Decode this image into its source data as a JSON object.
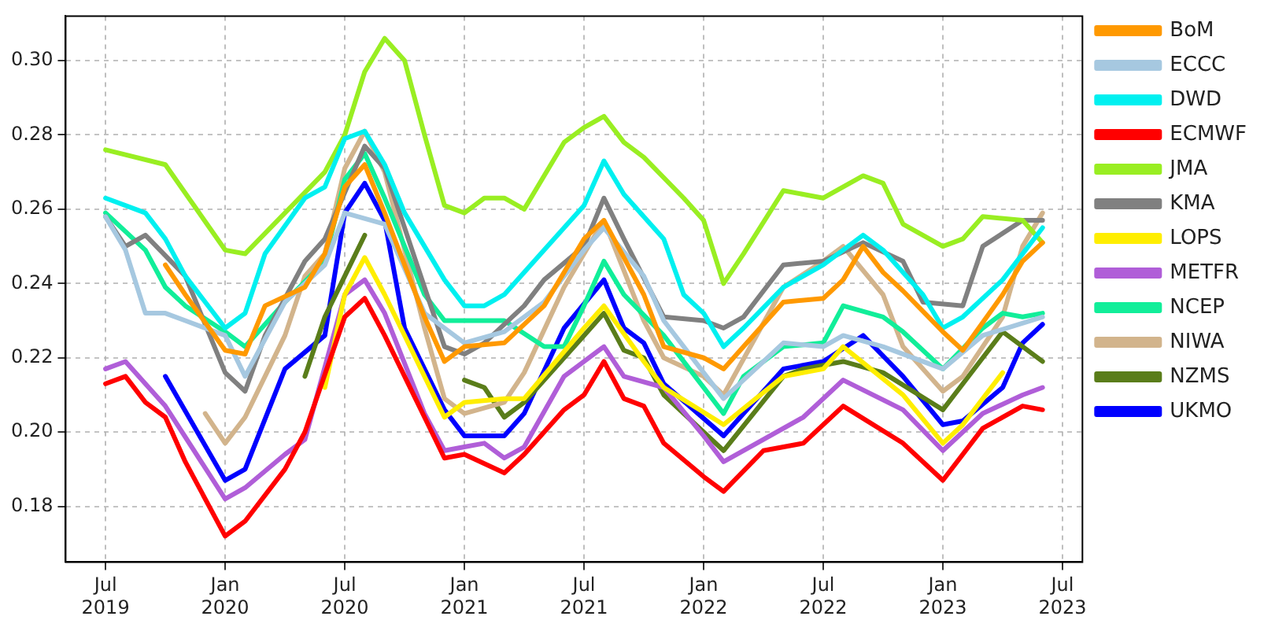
{
  "chart_data": {
    "type": "line",
    "xlim": [
      "2019-05",
      "2023-08"
    ],
    "ylim": [
      0.165,
      0.312
    ],
    "xticks": [
      {
        "value": "2019-07",
        "label": "Jul 2019"
      },
      {
        "value": "2020-01",
        "label": "Jan 2020"
      },
      {
        "value": "2020-07",
        "label": "Jul 2020"
      },
      {
        "value": "2021-01",
        "label": "Jan 2021"
      },
      {
        "value": "2021-07",
        "label": "Jul 2021"
      },
      {
        "value": "2022-01",
        "label": "Jan 2022"
      },
      {
        "value": "2022-07",
        "label": "Jul 2022"
      },
      {
        "value": "2023-01",
        "label": "Jan 2023"
      },
      {
        "value": "2023-07",
        "label": "Jul 2023"
      }
    ],
    "yticks": [
      {
        "value": 0.18,
        "label": "0.18"
      },
      {
        "value": 0.2,
        "label": "0.20"
      },
      {
        "value": 0.22,
        "label": "0.22"
      },
      {
        "value": 0.24,
        "label": "0.24"
      },
      {
        "value": 0.26,
        "label": "0.26"
      },
      {
        "value": 0.28,
        "label": "0.28"
      },
      {
        "value": 0.3,
        "label": "0.30"
      }
    ],
    "grid": true,
    "legend": "right",
    "marker": "none",
    "line_style": "solid",
    "series": [
      {
        "name": "BoM",
        "color": "#ff9900",
        "x": [
          "2019-10",
          "2019-11",
          "2020-01",
          "2020-02",
          "2020-03",
          "2020-05",
          "2020-06",
          "2020-07",
          "2020-08",
          "2020-09",
          "2020-11",
          "2020-12",
          "2021-01",
          "2021-03",
          "2021-05",
          "2021-07",
          "2021-08",
          "2021-10",
          "2021-11",
          "2022-01",
          "2022-02",
          "2022-03",
          "2022-05",
          "2022-07",
          "2022-08",
          "2022-09",
          "2022-10",
          "2022-11",
          "2023-01",
          "2023-02",
          "2023-04",
          "2023-05",
          "2023-06"
        ],
        "values": [
          0.245,
          0.237,
          0.222,
          0.221,
          0.234,
          0.239,
          0.248,
          0.266,
          0.272,
          0.259,
          0.231,
          0.219,
          0.223,
          0.224,
          0.234,
          0.252,
          0.257,
          0.237,
          0.223,
          0.22,
          0.217,
          0.223,
          0.235,
          0.236,
          0.241,
          0.25,
          0.243,
          0.238,
          0.227,
          0.222,
          0.237,
          0.246,
          0.251
        ]
      },
      {
        "name": "ECCC",
        "color": "#a6c8e0",
        "x": [
          "2019-07",
          "2019-08",
          "2019-09",
          "2019-10",
          "2019-11",
          "2020-01",
          "2020-02",
          "2020-04",
          "2020-06",
          "2020-07",
          "2020-09",
          "2020-11",
          "2021-01",
          "2021-03",
          "2021-05",
          "2021-07",
          "2021-08",
          "2021-10",
          "2021-11",
          "2022-02",
          "2022-05",
          "2022-07",
          "2022-08",
          "2022-10",
          "2023-01",
          "2023-03",
          "2023-06"
        ],
        "values": [
          0.258,
          0.249,
          0.232,
          0.232,
          0.23,
          0.226,
          0.215,
          0.235,
          0.245,
          0.259,
          0.256,
          0.232,
          0.224,
          0.227,
          0.235,
          0.249,
          0.255,
          0.242,
          0.23,
          0.209,
          0.224,
          0.223,
          0.226,
          0.223,
          0.217,
          0.226,
          0.231
        ]
      },
      {
        "name": "DWD",
        "color": "#00f0f0",
        "x": [
          "2019-07",
          "2019-09",
          "2019-10",
          "2019-11",
          "2020-01",
          "2020-02",
          "2020-03",
          "2020-05",
          "2020-06",
          "2020-07",
          "2020-08",
          "2020-09",
          "2020-10",
          "2020-12",
          "2021-01",
          "2021-02",
          "2021-03",
          "2021-05",
          "2021-07",
          "2021-08",
          "2021-09",
          "2021-11",
          "2021-12",
          "2022-01",
          "2022-02",
          "2022-03",
          "2022-05",
          "2022-07",
          "2022-09",
          "2022-10",
          "2022-12",
          "2023-01",
          "2023-02",
          "2023-04",
          "2023-06"
        ],
        "values": [
          0.263,
          0.259,
          0.252,
          0.242,
          0.228,
          0.232,
          0.248,
          0.263,
          0.266,
          0.279,
          0.281,
          0.272,
          0.259,
          0.241,
          0.234,
          0.234,
          0.237,
          0.249,
          0.261,
          0.273,
          0.264,
          0.252,
          0.237,
          0.232,
          0.223,
          0.228,
          0.239,
          0.245,
          0.253,
          0.249,
          0.237,
          0.228,
          0.231,
          0.241,
          0.255
        ]
      },
      {
        "name": "ECMWF",
        "color": "#ff0000",
        "x": [
          "2019-07",
          "2019-08",
          "2019-09",
          "2019-10",
          "2019-11",
          "2020-01",
          "2020-02",
          "2020-04",
          "2020-05",
          "2020-07",
          "2020-08",
          "2020-09",
          "2020-11",
          "2020-12",
          "2021-01",
          "2021-03",
          "2021-04",
          "2021-06",
          "2021-07",
          "2021-08",
          "2021-09",
          "2021-10",
          "2021-11",
          "2022-01",
          "2022-02",
          "2022-04",
          "2022-06",
          "2022-08",
          "2022-11",
          "2023-01",
          "2023-03",
          "2023-05",
          "2023-06"
        ],
        "values": [
          0.213,
          0.215,
          0.208,
          0.204,
          0.192,
          0.172,
          0.176,
          0.19,
          0.2,
          0.231,
          0.236,
          0.226,
          0.204,
          0.193,
          0.194,
          0.189,
          0.194,
          0.206,
          0.21,
          0.219,
          0.209,
          0.207,
          0.197,
          0.188,
          0.184,
          0.195,
          0.197,
          0.207,
          0.197,
          0.187,
          0.201,
          0.207,
          0.206
        ]
      },
      {
        "name": "JMA",
        "color": "#99ee22",
        "x": [
          "2019-07",
          "2019-10",
          "2020-01",
          "2020-02",
          "2020-04",
          "2020-06",
          "2020-07",
          "2020-08",
          "2020-09",
          "2020-10",
          "2020-11",
          "2020-12",
          "2021-01",
          "2021-02",
          "2021-03",
          "2021-04",
          "2021-06",
          "2021-07",
          "2021-08",
          "2021-09",
          "2021-10",
          "2021-12",
          "2022-01",
          "2022-02",
          "2022-03",
          "2022-05",
          "2022-07",
          "2022-09",
          "2022-10",
          "2022-11",
          "2023-01",
          "2023-02",
          "2023-03",
          "2023-05",
          "2023-06"
        ],
        "values": [
          0.276,
          0.272,
          0.249,
          0.248,
          0.259,
          0.27,
          0.28,
          0.297,
          0.306,
          0.3,
          0.28,
          0.261,
          0.259,
          0.263,
          0.263,
          0.26,
          0.278,
          0.282,
          0.285,
          0.278,
          0.274,
          0.263,
          0.257,
          0.24,
          0.248,
          0.265,
          0.263,
          0.269,
          0.267,
          0.256,
          0.25,
          0.252,
          0.258,
          0.257,
          0.251
        ]
      },
      {
        "name": "KMA",
        "color": "#808080",
        "x": [
          "2019-07",
          "2019-08",
          "2019-09",
          "2019-11",
          "2020-01",
          "2020-02",
          "2020-03",
          "2020-05",
          "2020-06",
          "2020-08",
          "2020-09",
          "2020-12",
          "2021-01",
          "2021-02",
          "2021-04",
          "2021-05",
          "2021-07",
          "2021-08",
          "2021-09",
          "2021-11",
          "2022-01",
          "2022-02",
          "2022-03",
          "2022-05",
          "2022-07",
          "2022-09",
          "2022-11",
          "2022-12",
          "2023-02",
          "2023-03",
          "2023-05",
          "2023-06"
        ],
        "values": [
          0.258,
          0.25,
          0.253,
          0.242,
          0.216,
          0.211,
          0.226,
          0.246,
          0.252,
          0.277,
          0.271,
          0.223,
          0.221,
          0.224,
          0.234,
          0.241,
          0.25,
          0.263,
          0.252,
          0.231,
          0.23,
          0.228,
          0.231,
          0.245,
          0.246,
          0.251,
          0.246,
          0.235,
          0.234,
          0.25,
          0.257,
          0.257
        ]
      },
      {
        "name": "LOPS",
        "color": "#ffee00",
        "x": [
          "2020-06",
          "2020-07",
          "2020-08",
          "2020-09",
          "2020-11",
          "2020-12",
          "2021-01",
          "2021-03",
          "2021-04",
          "2021-07",
          "2021-08",
          "2021-10",
          "2021-11",
          "2022-02",
          "2022-05",
          "2022-07",
          "2022-08",
          "2022-11",
          "2023-01",
          "2023-02",
          "2023-04"
        ],
        "values": [
          0.212,
          0.237,
          0.247,
          0.237,
          0.215,
          0.204,
          0.208,
          0.209,
          0.209,
          0.228,
          0.234,
          0.219,
          0.212,
          0.202,
          0.215,
          0.217,
          0.223,
          0.21,
          0.197,
          0.202,
          0.216
        ]
      },
      {
        "name": "METFR",
        "color": "#b05ed8",
        "x": [
          "2019-07",
          "2019-08",
          "2019-10",
          "2020-01",
          "2020-02",
          "2020-04",
          "2020-05",
          "2020-07",
          "2020-08",
          "2020-09",
          "2020-11",
          "2020-12",
          "2021-01",
          "2021-02",
          "2021-03",
          "2021-04",
          "2021-06",
          "2021-08",
          "2021-09",
          "2021-11",
          "2022-01",
          "2022-02",
          "2022-06",
          "2022-08",
          "2022-11",
          "2023-01",
          "2023-03",
          "2023-05",
          "2023-06"
        ],
        "values": [
          0.217,
          0.219,
          0.207,
          0.182,
          0.185,
          0.194,
          0.198,
          0.237,
          0.241,
          0.232,
          0.205,
          0.195,
          0.196,
          0.197,
          0.193,
          0.196,
          0.215,
          0.223,
          0.215,
          0.212,
          0.199,
          0.192,
          0.204,
          0.214,
          0.206,
          0.195,
          0.205,
          0.21,
          0.212
        ]
      },
      {
        "name": "NCEP",
        "color": "#11ee99",
        "x": [
          "2019-07",
          "2019-09",
          "2019-10",
          "2019-11",
          "2020-01",
          "2020-02",
          "2020-04",
          "2020-06",
          "2020-07",
          "2020-08",
          "2020-09",
          "2020-11",
          "2020-12",
          "2021-01",
          "2021-03",
          "2021-05",
          "2021-06",
          "2021-07",
          "2021-08",
          "2021-09",
          "2021-11",
          "2022-02",
          "2022-03",
          "2022-05",
          "2022-07",
          "2022-08",
          "2022-10",
          "2022-11",
          "2023-01",
          "2023-03",
          "2023-04",
          "2023-05",
          "2023-06"
        ],
        "values": [
          0.259,
          0.249,
          0.239,
          0.234,
          0.227,
          0.223,
          0.235,
          0.246,
          0.268,
          0.275,
          0.263,
          0.237,
          0.23,
          0.23,
          0.23,
          0.223,
          0.223,
          0.234,
          0.246,
          0.237,
          0.226,
          0.205,
          0.215,
          0.223,
          0.224,
          0.234,
          0.231,
          0.227,
          0.217,
          0.228,
          0.232,
          0.231,
          0.232
        ]
      },
      {
        "name": "NIWA",
        "color": "#d2b48c",
        "x": [
          "2019-12",
          "2020-01",
          "2020-02",
          "2020-04",
          "2020-05",
          "2020-06",
          "2020-07",
          "2020-08",
          "2020-09",
          "2020-11",
          "2020-12",
          "2021-01",
          "2021-03",
          "2021-04",
          "2021-06",
          "2021-08",
          "2021-10",
          "2021-11",
          "2022-01",
          "2022-02",
          "2022-05",
          "2022-07",
          "2022-08",
          "2022-10",
          "2022-11",
          "2023-01",
          "2023-02",
          "2023-04",
          "2023-05",
          "2023-06"
        ],
        "values": [
          0.205,
          0.197,
          0.204,
          0.226,
          0.242,
          0.248,
          0.271,
          0.281,
          0.27,
          0.228,
          0.209,
          0.205,
          0.208,
          0.216,
          0.239,
          0.257,
          0.23,
          0.22,
          0.215,
          0.21,
          0.239,
          0.246,
          0.25,
          0.237,
          0.223,
          0.211,
          0.215,
          0.231,
          0.25,
          0.259
        ]
      },
      {
        "name": "NZMS",
        "color": "#5a7d1a",
        "x": [
          "2020-05",
          "2020-06",
          "2020-07",
          "2020-08",
          "2020-10",
          "2021-01",
          "2021-02",
          "2021-03",
          "2021-04",
          "2021-07",
          "2021-08",
          "2021-09",
          "2021-10",
          "2021-11",
          "2022-02",
          "2022-05",
          "2022-06",
          "2022-08",
          "2022-10",
          "2023-01",
          "2023-03",
          "2023-04",
          "2023-06"
        ],
        "values": [
          0.215,
          0.231,
          0.242,
          0.253,
          null,
          0.214,
          0.212,
          0.204,
          0.208,
          0.226,
          0.232,
          0.222,
          0.22,
          0.21,
          0.195,
          0.215,
          0.217,
          0.219,
          0.216,
          0.206,
          0.22,
          0.227,
          0.219
        ]
      },
      {
        "name": "UKMO",
        "color": "#0000ff",
        "x": [
          "2019-10",
          "2020-01",
          "2020-02",
          "2020-04",
          "2020-06",
          "2020-07",
          "2020-08",
          "2020-09",
          "2020-10",
          "2020-12",
          "2021-01",
          "2021-03",
          "2021-04",
          "2021-06",
          "2021-08",
          "2021-09",
          "2021-10",
          "2021-11",
          "2022-02",
          "2022-05",
          "2022-07",
          "2022-09",
          "2022-11",
          "2023-01",
          "2023-02",
          "2023-04",
          "2023-05",
          "2023-06"
        ],
        "values": [
          0.215,
          0.187,
          0.19,
          0.217,
          0.226,
          0.259,
          0.267,
          0.257,
          0.228,
          0.206,
          0.199,
          0.199,
          0.205,
          0.228,
          0.241,
          0.228,
          0.224,
          0.213,
          0.199,
          0.217,
          0.219,
          0.226,
          0.215,
          0.202,
          0.203,
          0.212,
          0.224,
          0.229
        ]
      }
    ]
  }
}
